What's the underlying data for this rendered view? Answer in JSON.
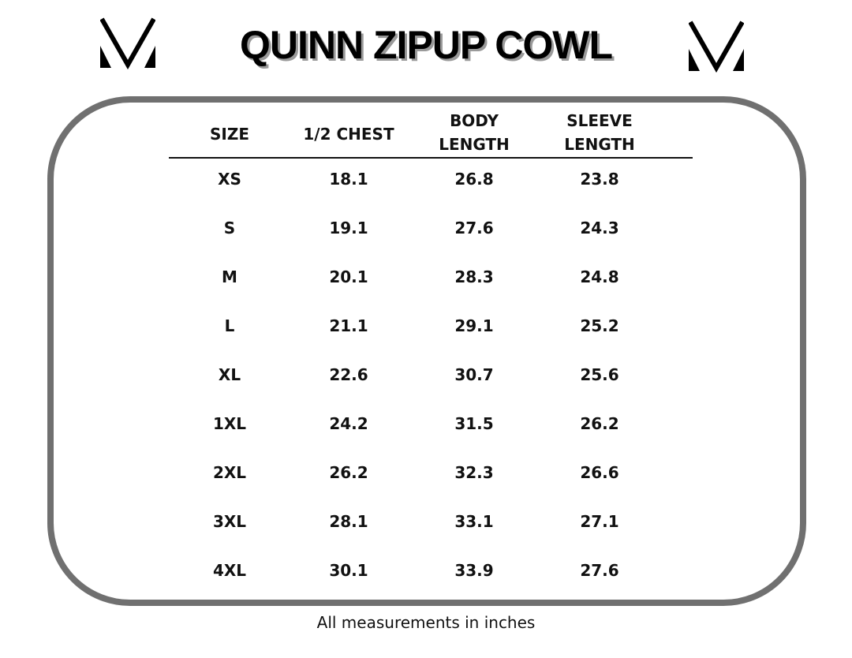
{
  "title": "QUINN ZIPUP COWL",
  "logo": {
    "name": "V logo mark",
    "color": "#000000"
  },
  "frame_color": "#707070",
  "table": {
    "headers": [
      [
        "SIZE"
      ],
      [
        "1/2 CHEST"
      ],
      [
        "BODY",
        "LENGTH"
      ],
      [
        "SLEEVE",
        "LENGTH"
      ]
    ],
    "rows": [
      [
        "XS",
        "18.1",
        "26.8",
        "23.8"
      ],
      [
        "S",
        "19.1",
        "27.6",
        "24.3"
      ],
      [
        "M",
        "20.1",
        "28.3",
        "24.8"
      ],
      [
        "L",
        "21.1",
        "29.1",
        "25.2"
      ],
      [
        "XL",
        "22.6",
        "30.7",
        "25.6"
      ],
      [
        "1XL",
        "24.2",
        "31.5",
        "26.2"
      ],
      [
        "2XL",
        "26.2",
        "32.3",
        "26.6"
      ],
      [
        "3XL",
        "28.1",
        "33.1",
        "27.1"
      ],
      [
        "4XL",
        "30.1",
        "33.9",
        "27.6"
      ]
    ]
  },
  "footer": "All measurements in inches"
}
